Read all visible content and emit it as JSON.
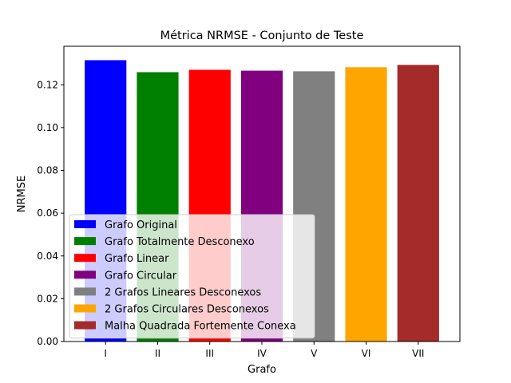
{
  "chart_data": {
    "type": "bar",
    "title": "Métrica NRMSE - Conjunto de Teste",
    "xlabel": "Grafo",
    "ylabel": "NRMSE",
    "categories": [
      "I",
      "II",
      "III",
      "IV",
      "V",
      "VI",
      "VII"
    ],
    "values": [
      0.1315,
      0.1259,
      0.127,
      0.1266,
      0.1263,
      0.1282,
      0.1293
    ],
    "colors": [
      "#0000ff",
      "#008000",
      "#ff0000",
      "#800080",
      "#808080",
      "#ffa500",
      "#a52a2a"
    ],
    "legend_labels": [
      "Grafo Original",
      "Grafo Totalmente Desconexo",
      "Grafo Linear",
      "Grafo Circular",
      "2 Grafos Lineares Desconexos",
      "2 Grafos Circulares Desconexos",
      "Malha Quadrada Fortemente Conexa"
    ],
    "legend_position": "lower-left",
    "ylim": [
      0,
      0.138
    ],
    "yticks": [
      0.0,
      0.02,
      0.04,
      0.06,
      0.08,
      0.1,
      0.12
    ],
    "ytick_labels": [
      "0.00",
      "0.02",
      "0.04",
      "0.06",
      "0.08",
      "0.10",
      "0.12"
    ],
    "grid": false
  }
}
